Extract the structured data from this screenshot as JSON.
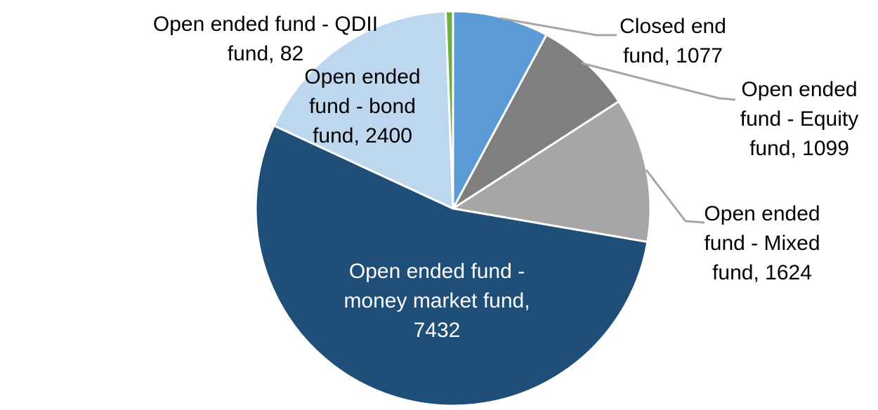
{
  "chart_data": {
    "type": "pie",
    "title": "",
    "legend": "none",
    "start_angle_deg": 0,
    "direction": "clockwise",
    "total": 13714,
    "slices": [
      {
        "id": "closed",
        "name": "Closed end fund",
        "value": 1077,
        "color": "#5B9BD5",
        "label": "Closed end fund, 1077",
        "label_lines": [
          "Closed end",
          "fund, 1077"
        ],
        "label_position": "outside",
        "leader_line": true
      },
      {
        "id": "equity",
        "name": "Open ended fund - Equity fund",
        "value": 1099,
        "color": "#7F7F7F",
        "label": "Open ended fund - Equity fund, 1099",
        "label_lines": [
          "Open ended",
          "fund - Equity",
          "fund, 1099"
        ],
        "label_position": "outside",
        "leader_line": true
      },
      {
        "id": "mixed",
        "name": "Open ended fund - Mixed fund",
        "value": 1624,
        "color": "#A6A6A6",
        "label": "Open ended fund - Mixed fund, 1624",
        "label_lines": [
          "Open ended",
          "fund - Mixed",
          "fund, 1624"
        ],
        "label_position": "outside",
        "leader_line": true
      },
      {
        "id": "money",
        "name": "Open ended fund - money market fund",
        "value": 7432,
        "color": "#1F4E79",
        "label": "Open ended fund - money market fund, 7432",
        "label_lines": [
          "Open ended fund -",
          "money market fund,",
          "7432"
        ],
        "label_position": "inside",
        "leader_line": false
      },
      {
        "id": "bond",
        "name": "Open ended fund - bond fund",
        "value": 2400,
        "color": "#BDD7EE",
        "label": "Open ended fund - bond fund, 2400",
        "label_lines": [
          "Open ended",
          "fund - bond",
          "fund, 2400"
        ],
        "label_position": "outside",
        "leader_line": false
      },
      {
        "id": "qdii",
        "name": "Open ended fund - QDII fund",
        "value": 82,
        "color": "#70AD47",
        "label": "Open ended fund - QDII fund, 82",
        "label_lines": [
          "Open ended fund - QDII",
          "fund, 82"
        ],
        "label_position": "outside",
        "leader_line": false
      }
    ],
    "colors": {
      "slice_border": "#FFFFFF",
      "leader_line": "#A6A6A6",
      "label_text": "#000000",
      "inside_label_text": "#FFFFFF",
      "background": "#FFFFFF"
    }
  }
}
